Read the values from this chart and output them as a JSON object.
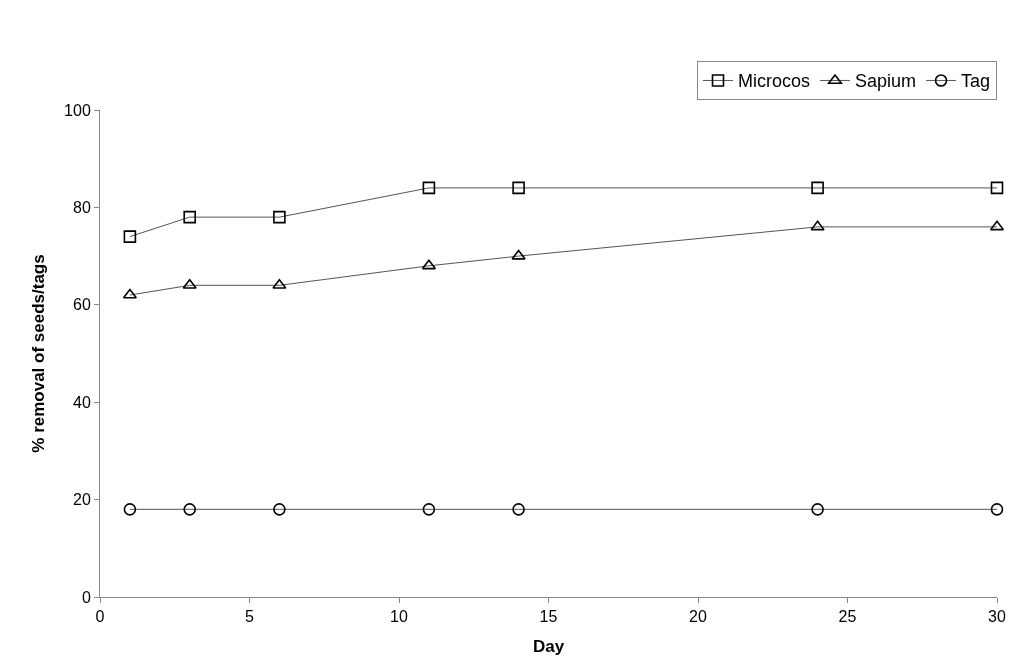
{
  "chart_data": {
    "type": "line",
    "xlabel": "Day",
    "ylabel": "% removal of seeds/tags",
    "x": [
      1,
      3,
      6,
      11,
      14,
      24,
      30
    ],
    "series": [
      {
        "name": "Microcos",
        "color": "#000000",
        "marker": "square",
        "values": [
          74,
          78,
          78,
          84,
          84,
          84,
          84
        ]
      },
      {
        "name": "Sapium",
        "color": "#000000",
        "marker": "triangle",
        "values": [
          62,
          64,
          64,
          68,
          70,
          76,
          76
        ]
      },
      {
        "name": "Tag",
        "color": "#000000",
        "marker": "circle",
        "values": [
          18,
          18,
          18,
          18,
          18,
          18,
          18
        ]
      }
    ],
    "xlim": [
      0,
      30
    ],
    "xticks": [
      0,
      5,
      10,
      15,
      20,
      25,
      30
    ],
    "ylim": [
      0,
      100
    ],
    "yticks": [
      0,
      20,
      40,
      60,
      80,
      100
    ],
    "legend": "top right"
  }
}
